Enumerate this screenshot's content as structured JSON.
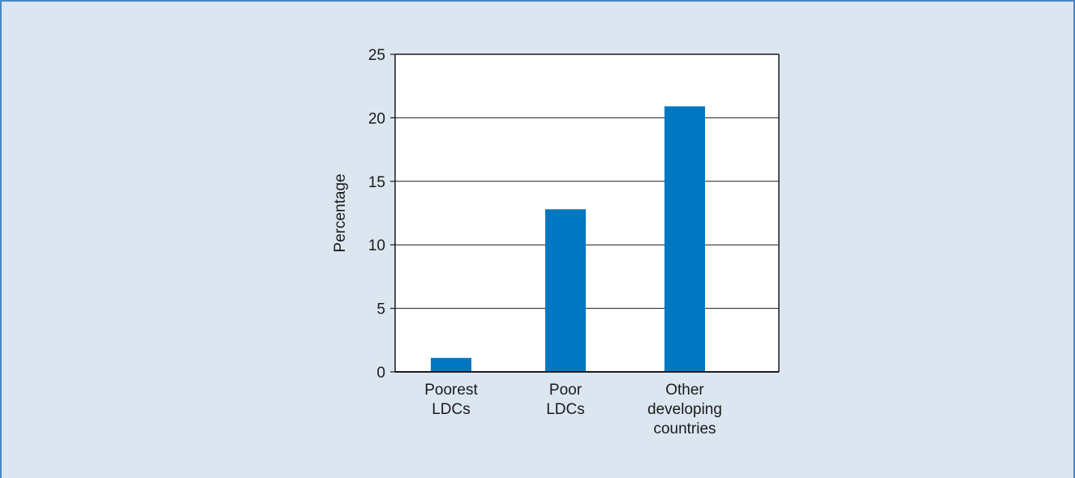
{
  "colors": {
    "background": "#dce6f1",
    "frame": "#4a86c5",
    "plot_area": "#ffffff",
    "bar": "#0078c1",
    "axis": "#1a1a1a"
  },
  "chart_data": {
    "type": "bar",
    "title": "",
    "xlabel": "",
    "ylabel": "Percentage",
    "categories": [
      [
        "Poorest",
        "LDCs"
      ],
      [
        "Poor",
        "LDCs"
      ],
      [
        "Other",
        "developing",
        "countries"
      ]
    ],
    "values": [
      1.1,
      12.8,
      20.9
    ],
    "ylim": [
      0,
      25
    ],
    "yticks": [
      0,
      5,
      10,
      15,
      20,
      25
    ],
    "grid": true,
    "legend": "none"
  }
}
